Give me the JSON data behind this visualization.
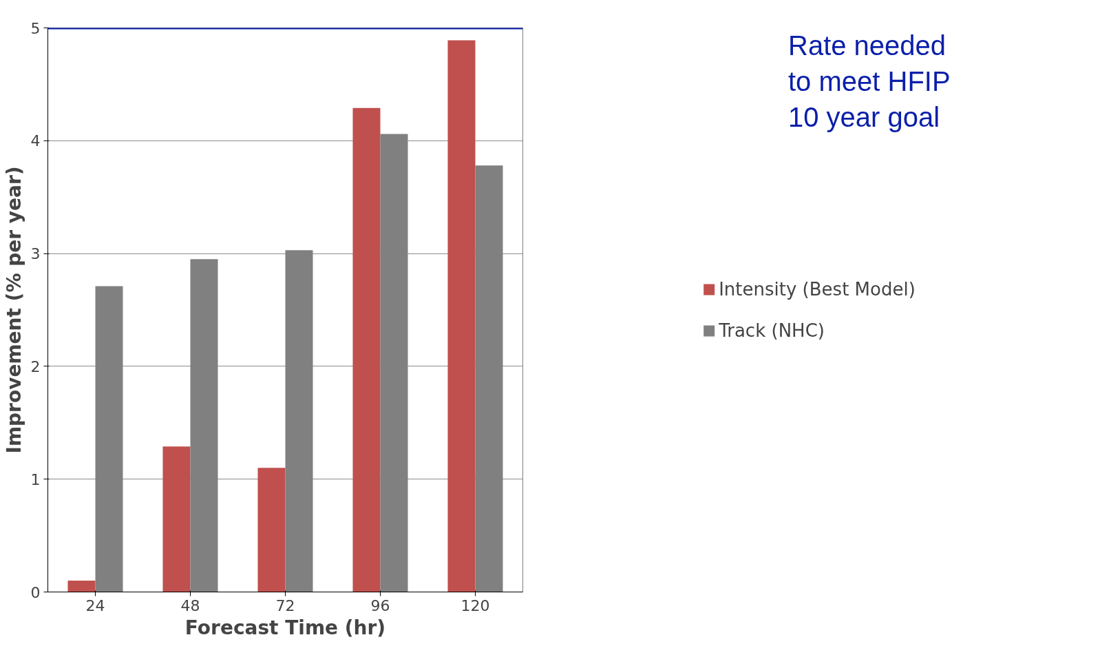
{
  "chart_data": {
    "type": "bar",
    "xlabel": "Forecast Time (hr)",
    "ylabel": "Improvement (% per year)",
    "categories": [
      "24",
      "48",
      "72",
      "96",
      "120"
    ],
    "series": [
      {
        "name": "Intensity (Best Model)",
        "color": "#c0504d",
        "values": [
          0.1,
          1.29,
          1.1,
          4.29,
          4.89
        ]
      },
      {
        "name": "Track (NHC)",
        "color": "#808080",
        "values": [
          2.71,
          2.95,
          3.03,
          4.06,
          3.78
        ]
      }
    ],
    "ylim": [
      0,
      5
    ],
    "yticks": [
      0,
      1,
      2,
      3,
      4,
      5
    ],
    "grid": "y",
    "legend": "right",
    "ref_lines": [
      {
        "axis": "y",
        "value": 5,
        "label": "Rate needed to meet HFIP 10 year goal",
        "color": "#0a1faa"
      }
    ]
  }
}
